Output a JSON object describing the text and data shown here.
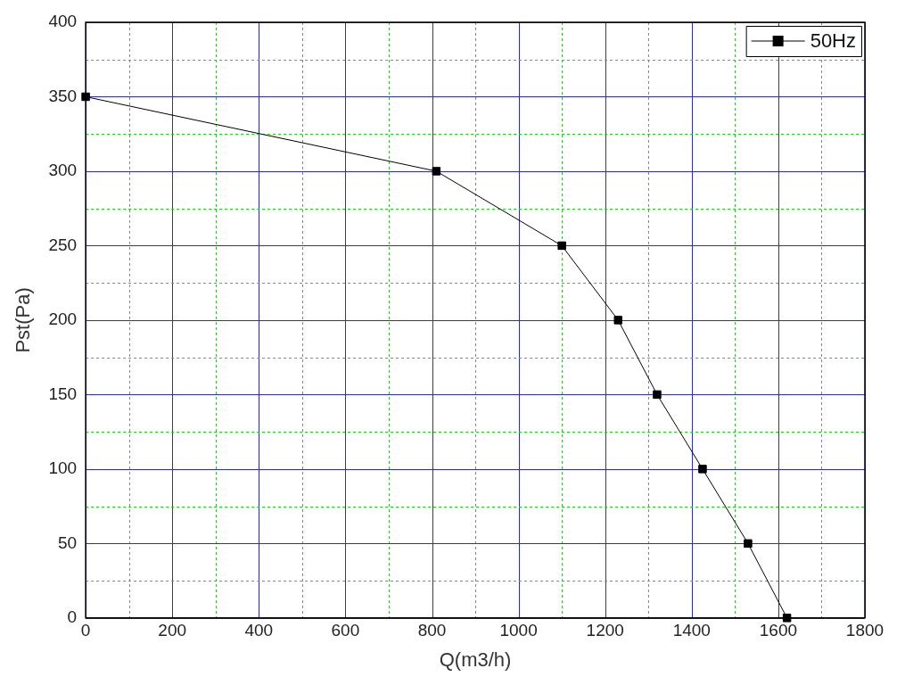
{
  "chart_data": {
    "type": "line",
    "xlabel": "Q(m3/h)",
    "ylabel": "Pst(Pa)",
    "x": [
      0,
      810,
      1100,
      1230,
      1320,
      1425,
      1530,
      1620
    ],
    "series": [
      {
        "name": "50Hz",
        "color": "#000000",
        "values": [
          350,
          300,
          250,
          200,
          150,
          100,
          50,
          0
        ]
      }
    ],
    "xlim": [
      0,
      1800
    ],
    "ylim": [
      0,
      400
    ],
    "xticks": [
      0,
      {
        "value": 100,
        "label": null
      },
      200,
      {
        "value": 300,
        "label": null
      },
      400,
      {
        "value": 500,
        "label": null
      },
      600,
      {
        "value": 700,
        "label": null
      },
      800,
      {
        "value": 900,
        "label": null
      },
      1000,
      {
        "value": 1100,
        "label": null
      },
      1200,
      {
        "value": 1300,
        "label": null
      },
      1400,
      {
        "value": 1500,
        "label": null
      },
      1600,
      {
        "value": 1700,
        "label": null
      },
      1800
    ],
    "yticks": [
      0,
      {
        "value": 25,
        "label": null
      },
      50,
      {
        "value": 75,
        "label": null
      },
      100,
      {
        "value": 125,
        "label": null
      },
      150,
      {
        "value": 175,
        "label": null
      },
      200,
      {
        "value": 225,
        "label": null
      },
      250,
      {
        "value": 275,
        "label": null
      },
      300,
      {
        "value": 325,
        "label": null
      },
      350,
      {
        "value": 375,
        "label": null
      },
      400
    ],
    "grid": true,
    "legend": "top right",
    "marker": "square",
    "line_style": "solid"
  }
}
